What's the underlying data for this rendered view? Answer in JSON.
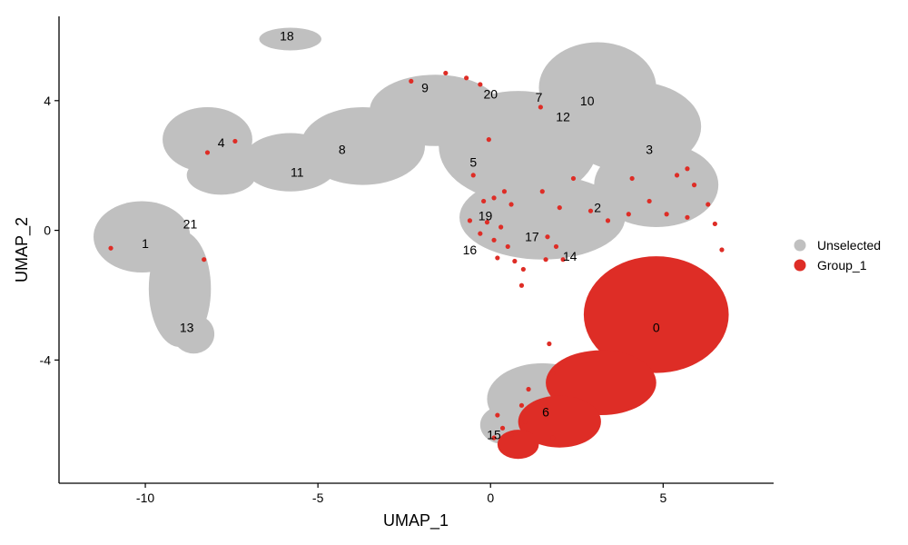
{
  "chart_data": {
    "type": "scatter",
    "xlabel": "UMAP_1",
    "ylabel": "UMAP_2",
    "xlim": [
      -12.5,
      8.2
    ],
    "ylim": [
      -7.8,
      6.6
    ],
    "x_ticks": [
      -10,
      -5,
      0,
      5
    ],
    "y_ticks": [
      -4,
      0,
      4
    ],
    "x_tick_labels": [
      "-10",
      "-5",
      "0",
      "5"
    ],
    "y_tick_labels": [
      "-4",
      "0",
      "4"
    ],
    "grid": false,
    "legend_position": "right",
    "series": [
      {
        "name": "Unselected",
        "color": "#c0c0c0"
      },
      {
        "name": "Group_1",
        "color": "#de2d26"
      }
    ],
    "unselected_regions": [
      {
        "x": -10.1,
        "y": -0.2,
        "rx": 1.4,
        "ry": 1.1
      },
      {
        "x": -9.0,
        "y": -1.8,
        "rx": 0.9,
        "ry": 1.8
      },
      {
        "x": -8.6,
        "y": -3.2,
        "rx": 0.6,
        "ry": 0.6
      },
      {
        "x": -8.2,
        "y": 2.8,
        "rx": 1.3,
        "ry": 1.0
      },
      {
        "x": -7.8,
        "y": 1.7,
        "rx": 1.0,
        "ry": 0.6
      },
      {
        "x": -5.8,
        "y": 2.1,
        "rx": 1.4,
        "ry": 0.9
      },
      {
        "x": -3.7,
        "y": 2.6,
        "rx": 1.8,
        "ry": 1.2
      },
      {
        "x": -1.6,
        "y": 3.7,
        "rx": 1.9,
        "ry": 1.1
      },
      {
        "x": 0.8,
        "y": 2.6,
        "rx": 2.3,
        "ry": 1.7
      },
      {
        "x": 1.5,
        "y": 0.4,
        "rx": 2.4,
        "ry": 1.3
      },
      {
        "x": 3.1,
        "y": 4.4,
        "rx": 1.7,
        "ry": 1.4
      },
      {
        "x": 4.1,
        "y": 3.2,
        "rx": 2.0,
        "ry": 1.4
      },
      {
        "x": 4.8,
        "y": 1.4,
        "rx": 1.8,
        "ry": 1.3
      },
      {
        "x": -5.8,
        "y": 5.9,
        "rx": 0.9,
        "ry": 0.35
      },
      {
        "x": 1.5,
        "y": -5.2,
        "rx": 1.6,
        "ry": 1.1
      },
      {
        "x": 0.4,
        "y": -6.0,
        "rx": 0.7,
        "ry": 0.6
      }
    ],
    "group1_regions": [
      {
        "x": 4.8,
        "y": -2.6,
        "rx": 2.1,
        "ry": 1.8
      },
      {
        "x": 3.2,
        "y": -4.7,
        "rx": 1.6,
        "ry": 1.0
      },
      {
        "x": 2.0,
        "y": -5.9,
        "rx": 1.2,
        "ry": 0.8
      },
      {
        "x": 0.8,
        "y": -6.6,
        "rx": 0.6,
        "ry": 0.45
      }
    ],
    "group1_points": [
      {
        "x": -11.0,
        "y": -0.55
      },
      {
        "x": -8.3,
        "y": -0.9
      },
      {
        "x": -8.2,
        "y": 2.4
      },
      {
        "x": -7.4,
        "y": 2.75
      },
      {
        "x": -2.3,
        "y": 4.6
      },
      {
        "x": -1.3,
        "y": 4.85
      },
      {
        "x": -0.7,
        "y": 4.7
      },
      {
        "x": -0.3,
        "y": 4.5
      },
      {
        "x": 1.45,
        "y": 3.8
      },
      {
        "x": -0.05,
        "y": 2.8
      },
      {
        "x": -0.5,
        "y": 1.7
      },
      {
        "x": -0.2,
        "y": 0.9
      },
      {
        "x": 0.1,
        "y": 1.0
      },
      {
        "x": 0.4,
        "y": 1.2
      },
      {
        "x": 0.6,
        "y": 0.8
      },
      {
        "x": 1.5,
        "y": 1.2
      },
      {
        "x": 2.0,
        "y": 0.7
      },
      {
        "x": 2.4,
        "y": 1.6
      },
      {
        "x": 4.1,
        "y": 1.6
      },
      {
        "x": 5.4,
        "y": 1.7
      },
      {
        "x": 5.9,
        "y": 1.4
      },
      {
        "x": 5.7,
        "y": 1.9
      },
      {
        "x": -0.6,
        "y": 0.3
      },
      {
        "x": -0.1,
        "y": 0.25
      },
      {
        "x": 0.3,
        "y": 0.1
      },
      {
        "x": -0.3,
        "y": -0.1
      },
      {
        "x": 0.1,
        "y": -0.3
      },
      {
        "x": 0.5,
        "y": -0.5
      },
      {
        "x": 0.2,
        "y": -0.85
      },
      {
        "x": 0.7,
        "y": -0.95
      },
      {
        "x": 0.95,
        "y": -1.2
      },
      {
        "x": 0.9,
        "y": -1.7
      },
      {
        "x": 1.65,
        "y": -0.2
      },
      {
        "x": 1.9,
        "y": -0.5
      },
      {
        "x": 1.6,
        "y": -0.9
      },
      {
        "x": 2.1,
        "y": -0.9
      },
      {
        "x": 2.9,
        "y": 0.6
      },
      {
        "x": 3.4,
        "y": 0.3
      },
      {
        "x": 4.0,
        "y": 0.5
      },
      {
        "x": 4.6,
        "y": 0.9
      },
      {
        "x": 5.1,
        "y": 0.5
      },
      {
        "x": 5.7,
        "y": 0.4
      },
      {
        "x": 6.3,
        "y": 0.8
      },
      {
        "x": 6.5,
        "y": 0.2
      },
      {
        "x": 6.7,
        "y": -0.6
      },
      {
        "x": 1.7,
        "y": -3.5
      },
      {
        "x": 1.8,
        "y": -4.4
      },
      {
        "x": 1.1,
        "y": -4.9
      },
      {
        "x": 0.9,
        "y": -5.4
      },
      {
        "x": 0.2,
        "y": -5.7
      },
      {
        "x": 0.35,
        "y": -6.1
      },
      {
        "x": 0.1,
        "y": -6.4
      },
      {
        "x": 1.0,
        "y": -5.9
      },
      {
        "x": 0.6,
        "y": -6.3
      },
      {
        "x": 1.3,
        "y": -6.7
      },
      {
        "x": 1.8,
        "y": -6.4
      }
    ],
    "cluster_labels": [
      {
        "label": "0",
        "x": 4.8,
        "y": -3.0
      },
      {
        "label": "1",
        "x": -10.0,
        "y": -0.4
      },
      {
        "label": "2",
        "x": 3.1,
        "y": 0.7
      },
      {
        "label": "3",
        "x": 4.6,
        "y": 2.5
      },
      {
        "label": "4",
        "x": -7.8,
        "y": 2.7
      },
      {
        "label": "5",
        "x": -0.5,
        "y": 2.1
      },
      {
        "label": "6",
        "x": 1.6,
        "y": -5.6
      },
      {
        "label": "7",
        "x": 1.4,
        "y": 4.1
      },
      {
        "label": "8",
        "x": -4.3,
        "y": 2.5
      },
      {
        "label": "9",
        "x": -1.9,
        "y": 4.4
      },
      {
        "label": "10",
        "x": 2.8,
        "y": 4.0
      },
      {
        "label": "11",
        "x": -5.6,
        "y": 1.8
      },
      {
        "label": "12",
        "x": 2.1,
        "y": 3.5
      },
      {
        "label": "13",
        "x": -8.8,
        "y": -3.0
      },
      {
        "label": "14",
        "x": 2.3,
        "y": -0.8
      },
      {
        "label": "15",
        "x": 0.1,
        "y": -6.3
      },
      {
        "label": "16",
        "x": -0.6,
        "y": -0.6
      },
      {
        "label": "17",
        "x": 1.2,
        "y": -0.2
      },
      {
        "label": "18",
        "x": -5.9,
        "y": 6.0
      },
      {
        "label": "19",
        "x": -0.15,
        "y": 0.45
      },
      {
        "label": "20",
        "x": 0.0,
        "y": 4.2
      },
      {
        "label": "21",
        "x": -8.7,
        "y": 0.2
      }
    ]
  }
}
